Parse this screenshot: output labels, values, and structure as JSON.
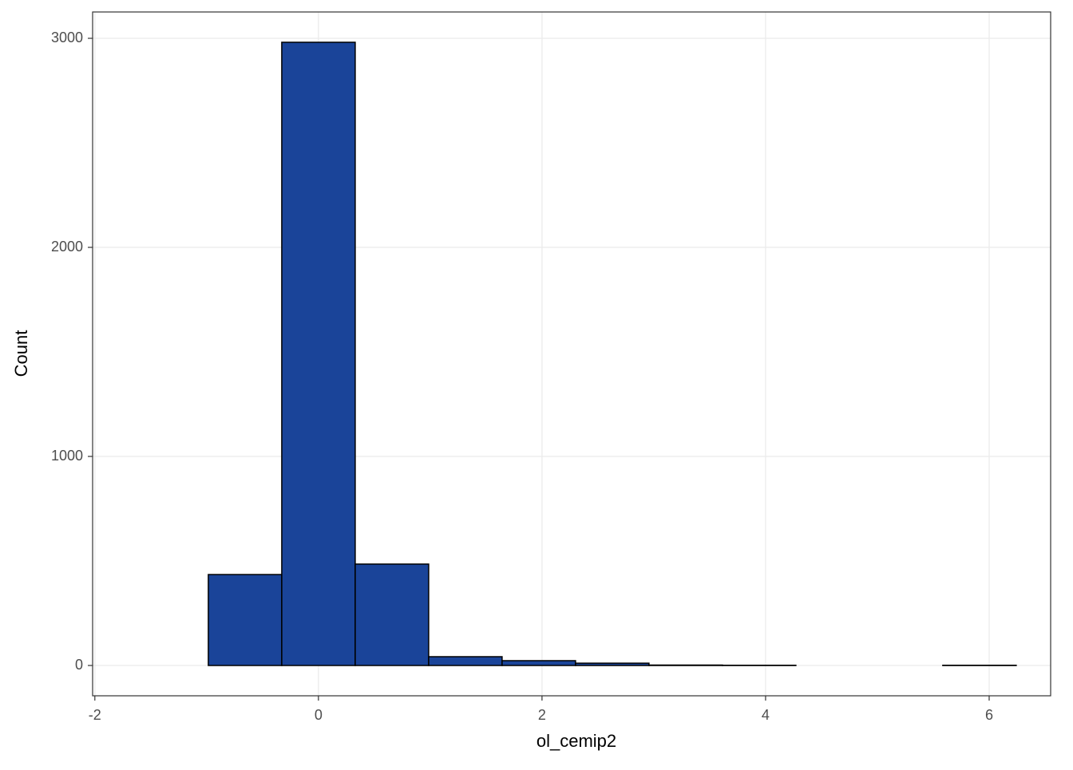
{
  "chart_data": {
    "type": "histogram",
    "x_label": "ol_cemip2",
    "y_label": "Count",
    "bins": [
      -1.642,
      -0.985,
      -0.328,
      0.329,
      0.986,
      1.643,
      2.3,
      2.957,
      3.614,
      4.271,
      4.928,
      5.585,
      6.242
    ],
    "values": [
      0,
      435,
      2981,
      485,
      42,
      23,
      11,
      2,
      1,
      0,
      0,
      1
    ],
    "color": "#1a4499",
    "edge_color": "#000000",
    "xlim": [
      -2.02,
      6.55
    ],
    "ylim": [
      -145,
      3126
    ],
    "xticks": [
      -2,
      0,
      2,
      4,
      6
    ],
    "yticks": [
      0,
      1000,
      2000,
      3000
    ],
    "grid": true
  }
}
